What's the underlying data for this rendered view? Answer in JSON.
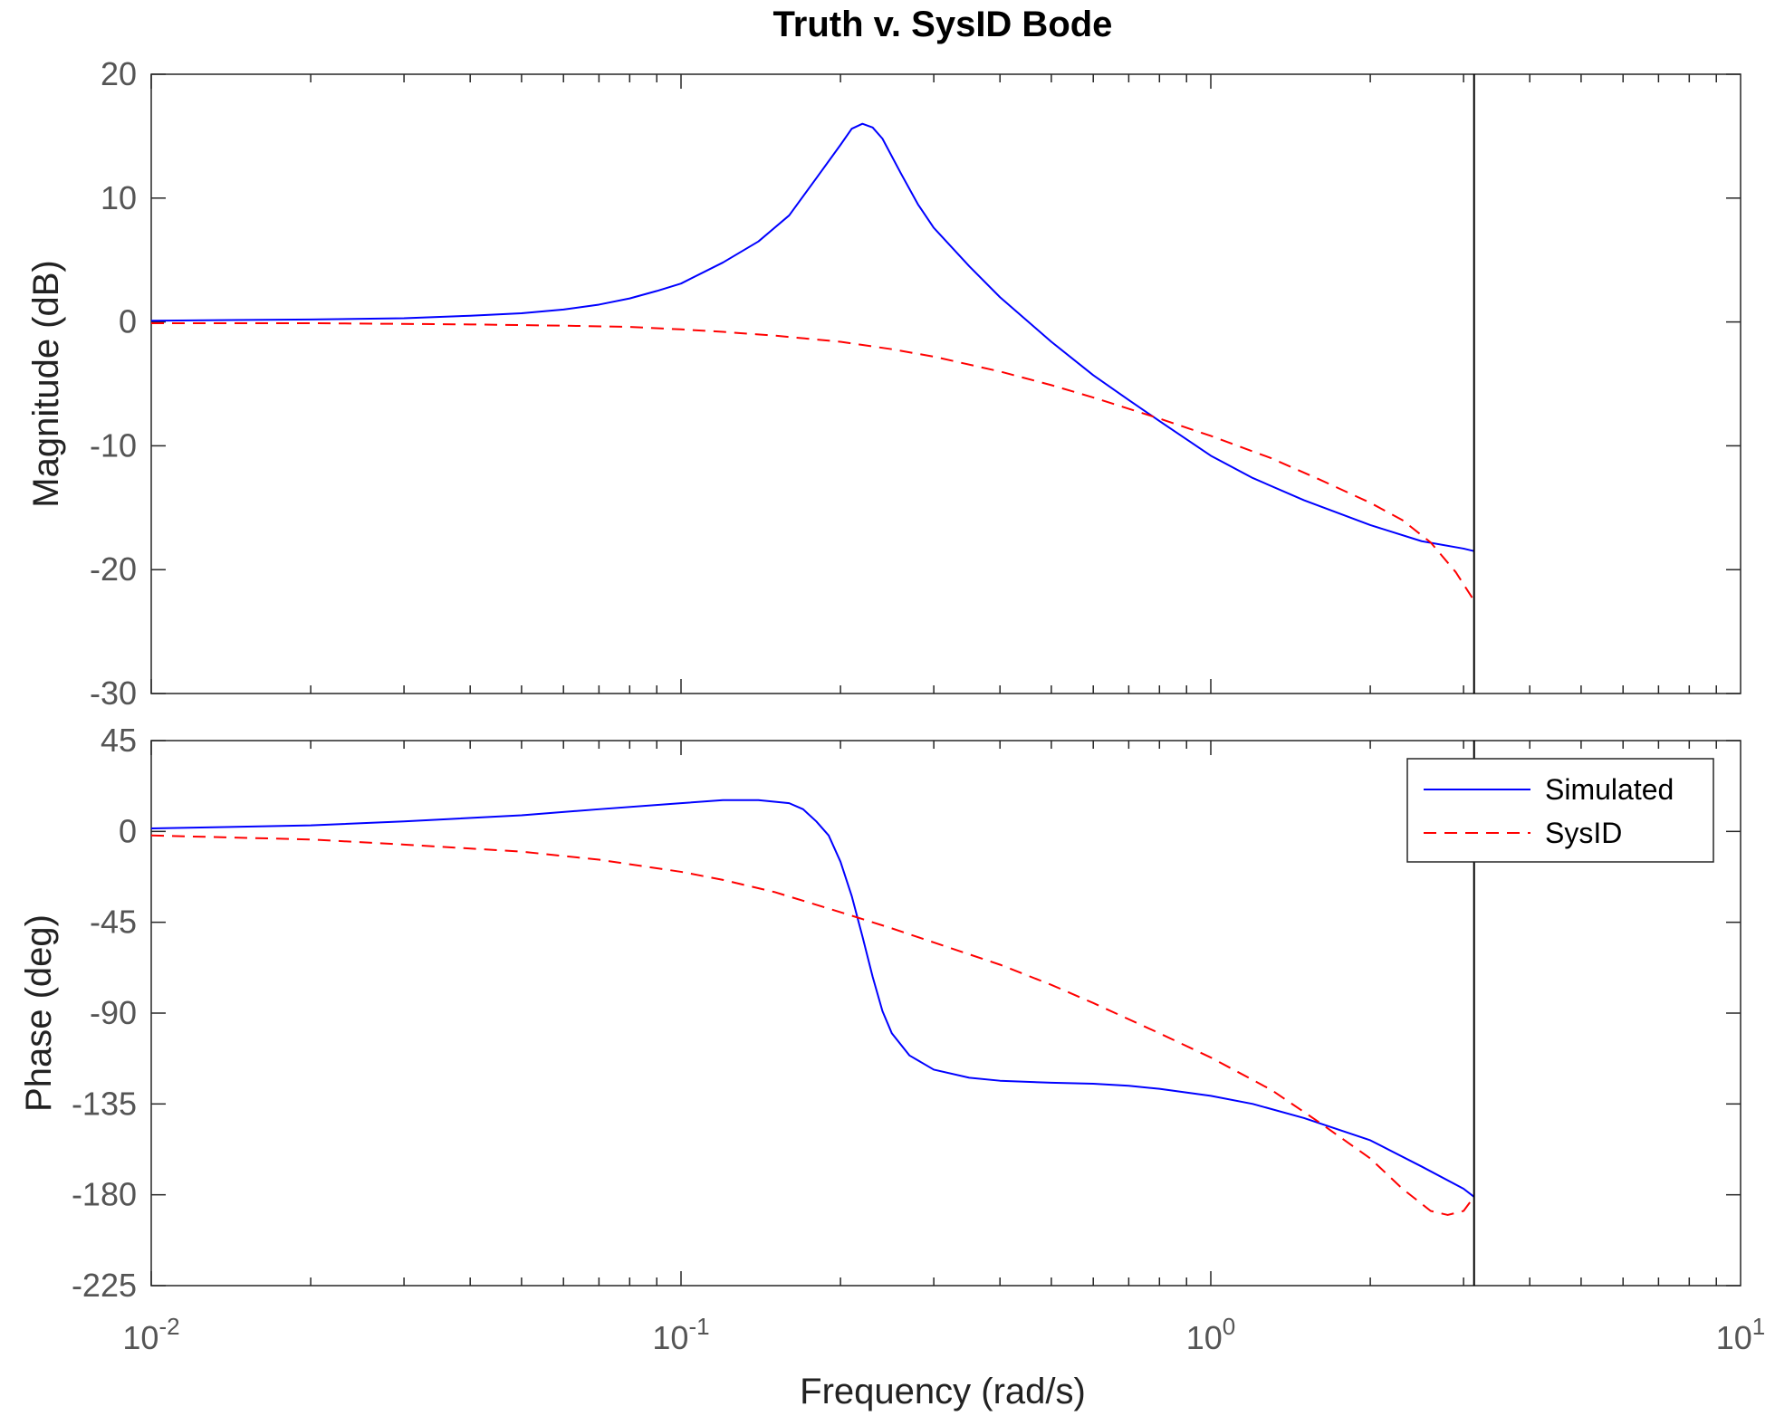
{
  "chart_data": {
    "type": "line",
    "title": "Truth v. SysID Bode",
    "xlabel": "Frequency  (rad/s)",
    "xscale": "log",
    "xlim": [
      0.01,
      10
    ],
    "x_ticks": [
      {
        "value": 0.01,
        "base": "10",
        "exp": "-2"
      },
      {
        "value": 0.1,
        "base": "10",
        "exp": "-1"
      },
      {
        "value": 1,
        "base": "10",
        "exp": "0"
      },
      {
        "value": 10,
        "base": "10",
        "exp": "1"
      }
    ],
    "nyquist_line_x": 3.14,
    "legend": {
      "placement": "top-right of phase panel",
      "entries": [
        {
          "label": "Simulated",
          "color": "#0000ff",
          "dash": "solid"
        },
        {
          "label": "SysID",
          "color": "#ff0000",
          "dash": "dashed"
        }
      ]
    },
    "panels": [
      {
        "id": "magnitude",
        "ylabel": "Magnitude (dB)",
        "ylim": [
          -30,
          20
        ],
        "yticks": [
          20,
          10,
          0,
          -10,
          -20,
          -30
        ],
        "yticklabels": [
          "20",
          "10",
          "0",
          "-10",
          "-20",
          "-30"
        ],
        "series": [
          {
            "name": "Simulated",
            "color": "#0000ff",
            "dash": "solid",
            "points": [
              [
                0.01,
                0.1
              ],
              [
                0.02,
                0.2
              ],
              [
                0.03,
                0.3
              ],
              [
                0.04,
                0.5
              ],
              [
                0.05,
                0.7
              ],
              [
                0.06,
                1.0
              ],
              [
                0.07,
                1.4
              ],
              [
                0.08,
                1.9
              ],
              [
                0.09,
                2.5
              ],
              [
                0.1,
                3.1
              ],
              [
                0.12,
                4.8
              ],
              [
                0.14,
                6.5
              ],
              [
                0.16,
                8.6
              ],
              [
                0.18,
                11.6
              ],
              [
                0.2,
                14.3
              ],
              [
                0.21,
                15.6
              ],
              [
                0.22,
                16.0
              ],
              [
                0.23,
                15.7
              ],
              [
                0.24,
                14.8
              ],
              [
                0.26,
                12.0
              ],
              [
                0.28,
                9.5
              ],
              [
                0.3,
                7.6
              ],
              [
                0.35,
                4.5
              ],
              [
                0.4,
                2.0
              ],
              [
                0.5,
                -1.6
              ],
              [
                0.6,
                -4.3
              ],
              [
                0.7,
                -6.3
              ],
              [
                0.8,
                -8.0
              ],
              [
                1.0,
                -10.8
              ],
              [
                1.2,
                -12.6
              ],
              [
                1.5,
                -14.4
              ],
              [
                2.0,
                -16.4
              ],
              [
                2.5,
                -17.7
              ],
              [
                3.0,
                -18.3
              ],
              [
                3.14,
                -18.5
              ]
            ]
          },
          {
            "name": "SysID",
            "color": "#ff0000",
            "dash": "dashed",
            "points": [
              [
                0.01,
                -0.1
              ],
              [
                0.02,
                -0.1
              ],
              [
                0.04,
                -0.2
              ],
              [
                0.06,
                -0.3
              ],
              [
                0.08,
                -0.4
              ],
              [
                0.1,
                -0.6
              ],
              [
                0.12,
                -0.8
              ],
              [
                0.15,
                -1.1
              ],
              [
                0.2,
                -1.6
              ],
              [
                0.25,
                -2.2
              ],
              [
                0.3,
                -2.8
              ],
              [
                0.4,
                -4.0
              ],
              [
                0.5,
                -5.1
              ],
              [
                0.6,
                -6.1
              ],
              [
                0.8,
                -7.8
              ],
              [
                1.0,
                -9.2
              ],
              [
                1.3,
                -11.0
              ],
              [
                1.6,
                -12.7
              ],
              [
                2.0,
                -14.6
              ],
              [
                2.3,
                -16.0
              ],
              [
                2.6,
                -17.8
              ],
              [
                2.9,
                -20.2
              ],
              [
                3.14,
                -22.5
              ]
            ]
          }
        ]
      },
      {
        "id": "phase",
        "ylabel": "Phase (deg)",
        "ylim": [
          -225,
          45
        ],
        "yticks": [
          45,
          0,
          -45,
          -90,
          -135,
          -180,
          -225
        ],
        "yticklabels": [
          "45",
          "0",
          "-45",
          "-90",
          "-135",
          "-180",
          "-225"
        ],
        "series": [
          {
            "name": "Simulated",
            "color": "#0000ff",
            "dash": "solid",
            "points": [
              [
                0.01,
                1.5
              ],
              [
                0.02,
                3
              ],
              [
                0.03,
                5
              ],
              [
                0.05,
                8
              ],
              [
                0.07,
                11
              ],
              [
                0.1,
                14
              ],
              [
                0.12,
                15.5
              ],
              [
                0.14,
                15.5
              ],
              [
                0.16,
                14
              ],
              [
                0.17,
                11
              ],
              [
                0.18,
                5
              ],
              [
                0.19,
                -2
              ],
              [
                0.2,
                -15
              ],
              [
                0.21,
                -32
              ],
              [
                0.22,
                -52
              ],
              [
                0.23,
                -72
              ],
              [
                0.24,
                -89
              ],
              [
                0.25,
                -100
              ],
              [
                0.27,
                -111
              ],
              [
                0.3,
                -118
              ],
              [
                0.35,
                -122
              ],
              [
                0.4,
                -123.5
              ],
              [
                0.5,
                -124.5
              ],
              [
                0.6,
                -125
              ],
              [
                0.7,
                -126
              ],
              [
                0.8,
                -127.5
              ],
              [
                1.0,
                -131
              ],
              [
                1.2,
                -135
              ],
              [
                1.5,
                -142
              ],
              [
                2.0,
                -153
              ],
              [
                2.5,
                -166
              ],
              [
                3.0,
                -177
              ],
              [
                3.14,
                -181
              ]
            ]
          },
          {
            "name": "SysID",
            "color": "#ff0000",
            "dash": "dashed",
            "points": [
              [
                0.01,
                -2
              ],
              [
                0.02,
                -4
              ],
              [
                0.03,
                -6.5
              ],
              [
                0.05,
                -10
              ],
              [
                0.07,
                -14
              ],
              [
                0.1,
                -20
              ],
              [
                0.12,
                -24
              ],
              [
                0.15,
                -30
              ],
              [
                0.2,
                -40
              ],
              [
                0.25,
                -48
              ],
              [
                0.3,
                -55
              ],
              [
                0.4,
                -66
              ],
              [
                0.5,
                -76
              ],
              [
                0.6,
                -85
              ],
              [
                0.8,
                -100
              ],
              [
                1.0,
                -112
              ],
              [
                1.3,
                -128
              ],
              [
                1.6,
                -144
              ],
              [
                2.0,
                -162
              ],
              [
                2.3,
                -177
              ],
              [
                2.6,
                -188
              ],
              [
                2.8,
                -190
              ],
              [
                3.0,
                -188
              ],
              [
                3.14,
                -181
              ]
            ]
          }
        ]
      }
    ]
  }
}
